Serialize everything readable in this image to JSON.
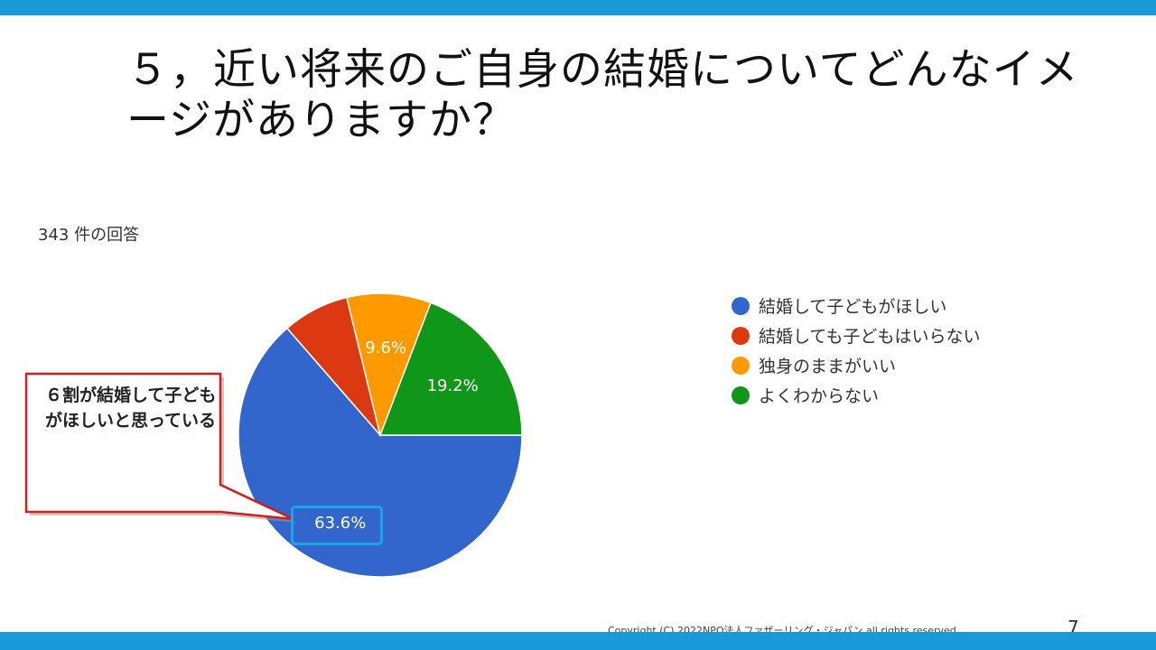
{
  "slide": {
    "title": "５，近い将来のご自身の結婚についてどんなイメージがありますか？",
    "response_count": "343 件の回答",
    "callout": "６割が結婚して子どもがほしいと思っている",
    "copyright": "Copyright (C) 2022NPO法人ファザーリング・ジャパン all rights reserved.",
    "page_number": "7"
  },
  "colors": {
    "bar": "#1a9ad8",
    "callout_border": "#d01e1e",
    "highlight": "#1ea3e6"
  },
  "chart_data": {
    "type": "pie",
    "categories": [
      "結婚して子どもがほしい",
      "結婚しても子どもはいらない",
      "独身のままがいい",
      "よくわからない"
    ],
    "values": [
      63.6,
      7.6,
      9.6,
      19.2
    ],
    "data_labels": [
      "63.6%",
      "",
      "9.6%",
      "19.2%"
    ],
    "colors": [
      "#3366cc",
      "#dc3912",
      "#ff9900",
      "#109618"
    ],
    "legend": "right",
    "start": "3 o'clock, clockwise"
  }
}
